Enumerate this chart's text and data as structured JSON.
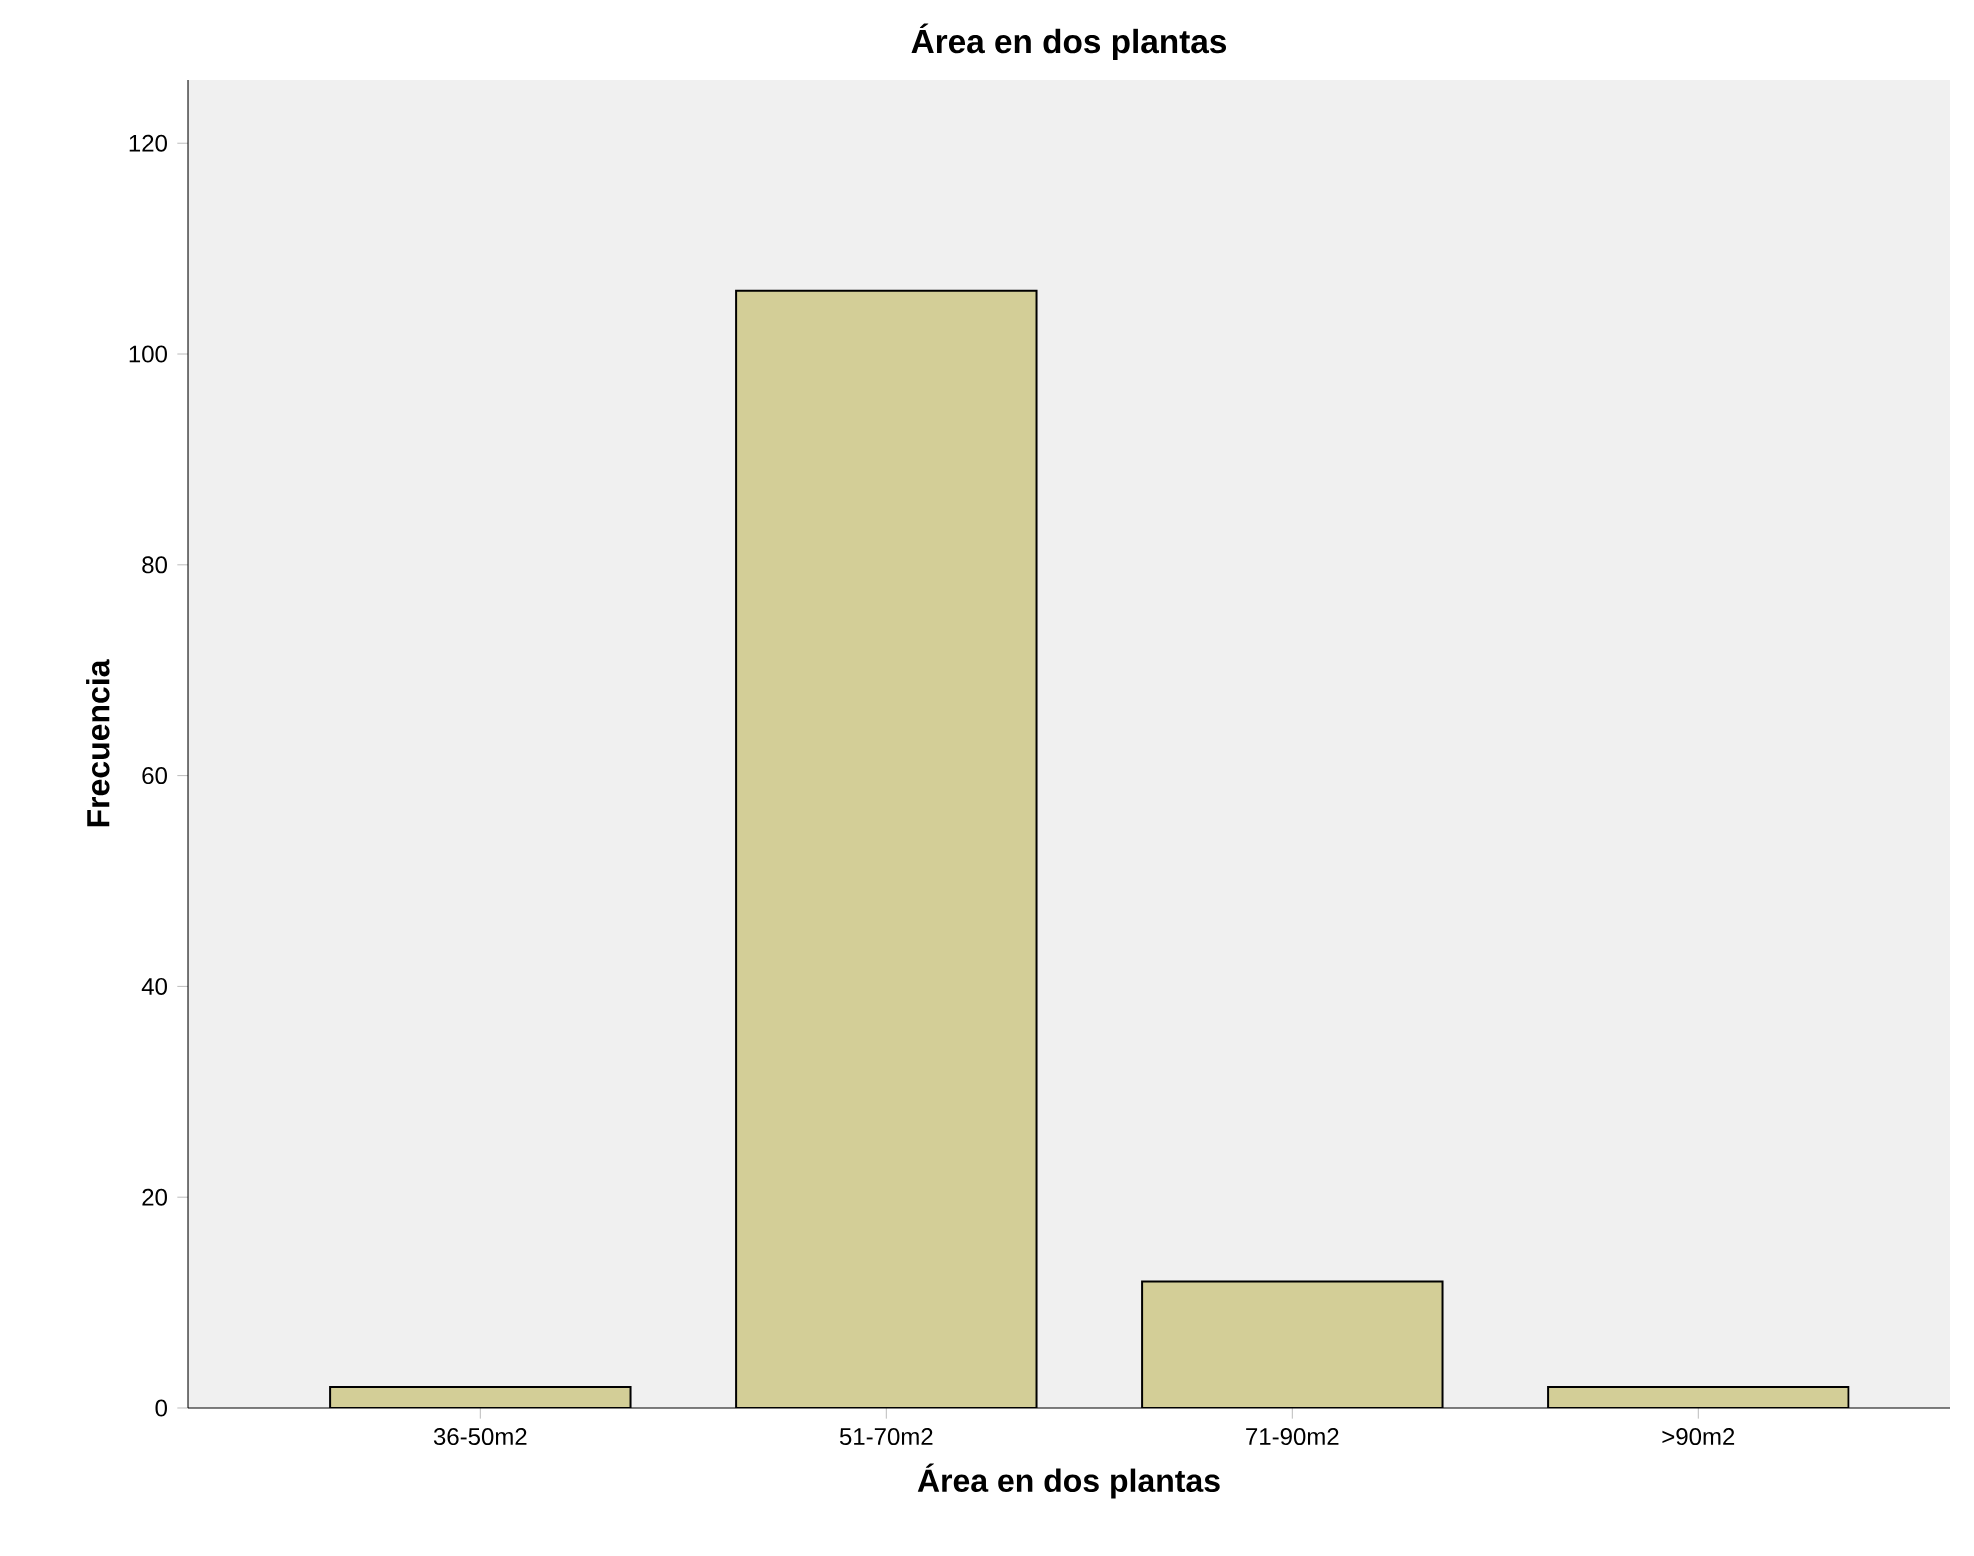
{
  "chart_data": {
    "type": "bar",
    "title": "Área en dos plantas",
    "xlabel": "Área en dos plantas",
    "ylabel": "Frecuencia",
    "categories": [
      "36-50m2",
      "51-70m2",
      "71-90m2",
      ">90m2"
    ],
    "values": [
      2,
      106,
      12,
      2
    ],
    "color": "#d3ce97",
    "ylim": [
      0,
      126
    ],
    "yticks": [
      0,
      20,
      40,
      60,
      80,
      100,
      120
    ]
  }
}
